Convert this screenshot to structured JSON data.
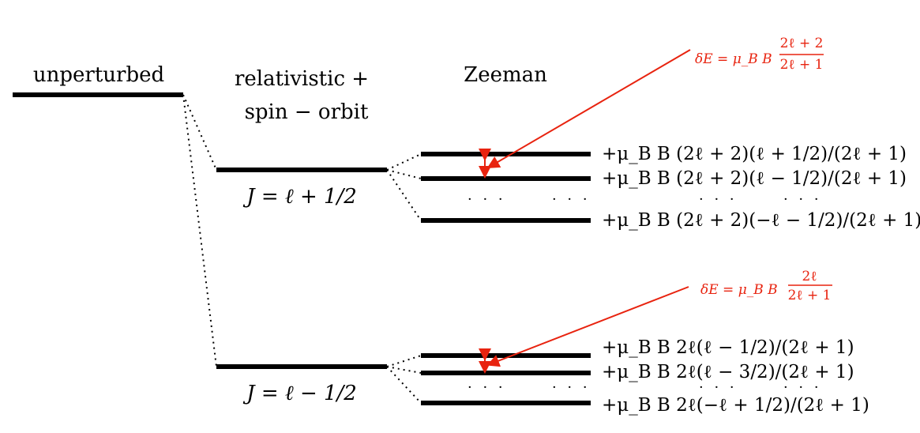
{
  "column_labels": {
    "unperturbed": "unperturbed",
    "fine_line1": "relativistic +",
    "fine_line2": "spin − orbit",
    "zeeman": "Zeeman"
  },
  "levels": {
    "upper": "J = ℓ + 1/2",
    "lower": "J = ℓ − 1/2"
  },
  "upper_zeeman": {
    "line1": "+μ_B B (2ℓ + 2)(ℓ + 1/2)/(2ℓ + 1)",
    "line2": "+μ_B B (2ℓ + 2)(ℓ − 1/2)/(2ℓ + 1)",
    "line3": "+μ_B B (2ℓ + 2)(−ℓ − 1/2)/(2ℓ + 1)",
    "ellipsis": "· · ·      · · ·",
    "ellipsis_right": "· · ·      · · ·",
    "splitting_lhs": "δE = μ_B B",
    "splitting_num": "2ℓ + 2",
    "splitting_den": "2ℓ + 1"
  },
  "lower_zeeman": {
    "line1": "+μ_B B 2ℓ(ℓ − 1/2)/(2ℓ + 1)",
    "line2": "+μ_B B 2ℓ(ℓ − 3/2)/(2ℓ + 1)",
    "line3": "+μ_B B 2ℓ(−ℓ + 1/2)/(2ℓ + 1)",
    "ellipsis": "· · ·      · · ·",
    "ellipsis_right": "· · ·      · · ·",
    "splitting_lhs": "δE = μ_B B",
    "splitting_num": "2ℓ",
    "splitting_den": "2ℓ + 1"
  },
  "colors": {
    "level": "#000000",
    "annotation": "#e8230f"
  }
}
